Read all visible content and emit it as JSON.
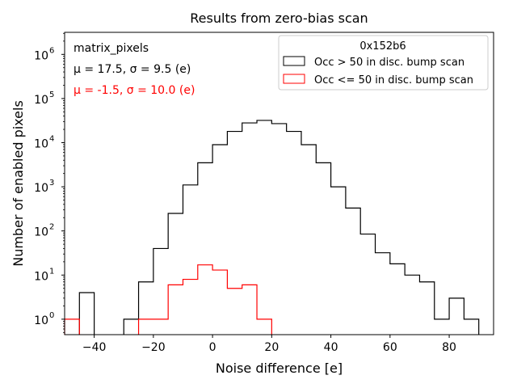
{
  "chart_data": {
    "type": "histogram",
    "title": "Results from zero-bias scan",
    "xlabel": "Noise difference [e]",
    "ylabel": "Number of enabled pixels",
    "xlim": [
      -50,
      95
    ],
    "ylim_log10": [
      -0.35,
      6.5
    ],
    "yscale": "log",
    "bin_width": 5,
    "x_ticks": [
      -40,
      -20,
      0,
      20,
      40,
      60,
      80
    ],
    "x_tick_labels": [
      "−40",
      "−20",
      "0",
      "20",
      "40",
      "60",
      "80"
    ],
    "y_ticks_exp": [
      0,
      1,
      2,
      3,
      4,
      5,
      6
    ],
    "y_tick_labels": [
      "10",
      "10",
      "10",
      "10",
      "10",
      "10",
      "10"
    ],
    "y_tick_sups": [
      "0",
      "1",
      "2",
      "3",
      "4",
      "5",
      "6"
    ],
    "series": [
      {
        "name": "Occ > 50 in disc. bump scan",
        "color": "#000000",
        "bins": [
          {
            "x0": -45,
            "x1": -40,
            "v": 4
          },
          {
            "x0": -30,
            "x1": -25,
            "v": 1
          },
          {
            "x0": -25,
            "x1": -20,
            "v": 7
          },
          {
            "x0": -20,
            "x1": -15,
            "v": 40
          },
          {
            "x0": -15,
            "x1": -10,
            "v": 250
          },
          {
            "x0": -10,
            "x1": -5,
            "v": 1100
          },
          {
            "x0": -5,
            "x1": 0,
            "v": 3500
          },
          {
            "x0": 0,
            "x1": 5,
            "v": 9000
          },
          {
            "x0": 5,
            "x1": 10,
            "v": 18000
          },
          {
            "x0": 10,
            "x1": 15,
            "v": 28000
          },
          {
            "x0": 15,
            "x1": 20,
            "v": 32000
          },
          {
            "x0": 20,
            "x1": 25,
            "v": 27000
          },
          {
            "x0": 25,
            "x1": 30,
            "v": 18000
          },
          {
            "x0": 30,
            "x1": 35,
            "v": 9000
          },
          {
            "x0": 35,
            "x1": 40,
            "v": 3500
          },
          {
            "x0": 40,
            "x1": 45,
            "v": 1000
          },
          {
            "x0": 45,
            "x1": 50,
            "v": 330
          },
          {
            "x0": 50,
            "x1": 55,
            "v": 85
          },
          {
            "x0": 55,
            "x1": 60,
            "v": 32
          },
          {
            "x0": 60,
            "x1": 65,
            "v": 18
          },
          {
            "x0": 65,
            "x1": 70,
            "v": 10
          },
          {
            "x0": 70,
            "x1": 75,
            "v": 7
          },
          {
            "x0": 75,
            "x1": 80,
            "v": 1
          },
          {
            "x0": 80,
            "x1": 85,
            "v": 3
          },
          {
            "x0": 85,
            "x1": 90,
            "v": 1
          }
        ]
      },
      {
        "name": "Occ <= 50 in disc. bump scan",
        "color": "#ff0000",
        "bins": [
          {
            "x0": -50,
            "x1": -45,
            "v": 1
          },
          {
            "x0": -25,
            "x1": -20,
            "v": 1
          },
          {
            "x0": -20,
            "x1": -15,
            "v": 1
          },
          {
            "x0": -15,
            "x1": -10,
            "v": 6
          },
          {
            "x0": -10,
            "x1": -5,
            "v": 8
          },
          {
            "x0": -5,
            "x1": 0,
            "v": 17
          },
          {
            "x0": 0,
            "x1": 5,
            "v": 13
          },
          {
            "x0": 5,
            "x1": 10,
            "v": 5
          },
          {
            "x0": 10,
            "x1": 15,
            "v": 6
          },
          {
            "x0": 15,
            "x1": 20,
            "v": 1
          }
        ]
      }
    ],
    "legend": {
      "title": "0x152b6",
      "position": "top-right"
    },
    "annotations": [
      {
        "text": "matrix_pixels",
        "color": "#000000"
      },
      {
        "text": "μ = 17.5, σ = 9.5 (e)",
        "color": "#000000"
      },
      {
        "text": "μ = -1.5, σ = 10.0 (e)",
        "color": "#ff0000"
      }
    ]
  }
}
